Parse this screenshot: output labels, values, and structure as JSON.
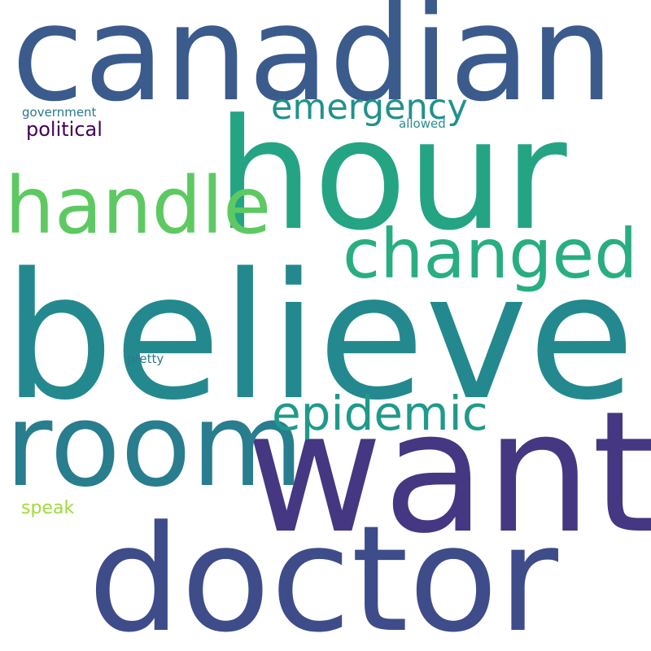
{
  "words": [
    {
      "key": "canadian",
      "text": "canadian",
      "color": "#3b5b8c"
    },
    {
      "key": "hour",
      "text": "hour",
      "color": "#25a484"
    },
    {
      "key": "believe",
      "text": "believe",
      "color": "#23898e"
    },
    {
      "key": "want",
      "text": "want",
      "color": "#453781"
    },
    {
      "key": "doctor",
      "text": "doctor",
      "color": "#3e4c8a"
    },
    {
      "key": "room",
      "text": "room",
      "color": "#287d8e"
    },
    {
      "key": "handle",
      "text": "handle",
      "color": "#5ec962"
    },
    {
      "key": "changed",
      "text": "changed",
      "color": "#28ae80"
    },
    {
      "key": "epidemic",
      "text": "epidemic",
      "color": "#1f9a8a"
    },
    {
      "key": "emergency",
      "text": "emergency",
      "color": "#21918c"
    },
    {
      "key": "political",
      "text": "political",
      "color": "#440154"
    },
    {
      "key": "government",
      "text": "government",
      "color": "#2a788e"
    },
    {
      "key": "allowed",
      "text": "allowed",
      "color": "#2c8c8b"
    },
    {
      "key": "pretty",
      "text": "pretty",
      "color": "#297b8e"
    },
    {
      "key": "speak",
      "text": "speak",
      "color": "#9fda3a"
    }
  ]
}
